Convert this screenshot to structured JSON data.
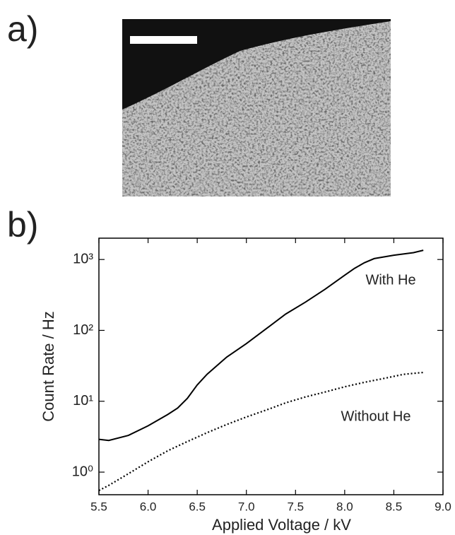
{
  "panels": [
    "a)",
    "b)"
  ],
  "chart_data": {
    "type": "line",
    "xlabel": "Applied Voltage / kV",
    "ylabel": "Count Rate / Hz",
    "xlim": [
      5.5,
      9.0
    ],
    "xticks": [
      5.5,
      {
        "value": 6,
        "label": "6.0"
      },
      6.5,
      {
        "value": 7,
        "label": "7.0"
      },
      7.5,
      {
        "value": 8,
        "label": "8.0"
      },
      8.5,
      {
        "value": 9,
        "label": "9.0"
      }
    ],
    "ylim": [
      0.48,
      2000
    ],
    "log_y": true,
    "yticks": [
      {
        "value": 1,
        "label": "10⁰"
      },
      {
        "value": 10,
        "label": "10¹"
      },
      {
        "value": 100,
        "label": "10²"
      },
      {
        "value": 1000,
        "label": "10³"
      }
    ],
    "series": [
      {
        "name": "With He",
        "color": "#000000",
        "dash": "solid",
        "x": [
          5.5,
          5.6,
          5.8,
          6.0,
          6.2,
          6.3,
          6.4,
          6.5,
          6.6,
          6.8,
          7.0,
          7.2,
          7.4,
          7.6,
          7.8,
          8.0,
          8.1,
          8.2,
          8.3,
          8.5,
          8.7,
          8.8
        ],
        "values": [
          2.9,
          2.8,
          3.3,
          4.5,
          6.5,
          8,
          11,
          17,
          24,
          42,
          65,
          105,
          170,
          250,
          380,
          600,
          750,
          900,
          1030,
          1150,
          1250,
          1350
        ]
      },
      {
        "name": "Without He",
        "color": "#000000",
        "dash": "dotted",
        "x": [
          5.5,
          5.6,
          5.8,
          6.0,
          6.2,
          6.4,
          6.6,
          6.8,
          7.0,
          7.2,
          7.4,
          7.6,
          7.8,
          8.0,
          8.2,
          8.4,
          8.6,
          8.8
        ],
        "values": [
          0.55,
          0.65,
          0.95,
          1.4,
          2.0,
          2.7,
          3.6,
          4.7,
          6,
          7.5,
          9.5,
          11.5,
          13.5,
          16,
          18.5,
          21,
          24,
          25.5
        ]
      }
    ]
  }
}
